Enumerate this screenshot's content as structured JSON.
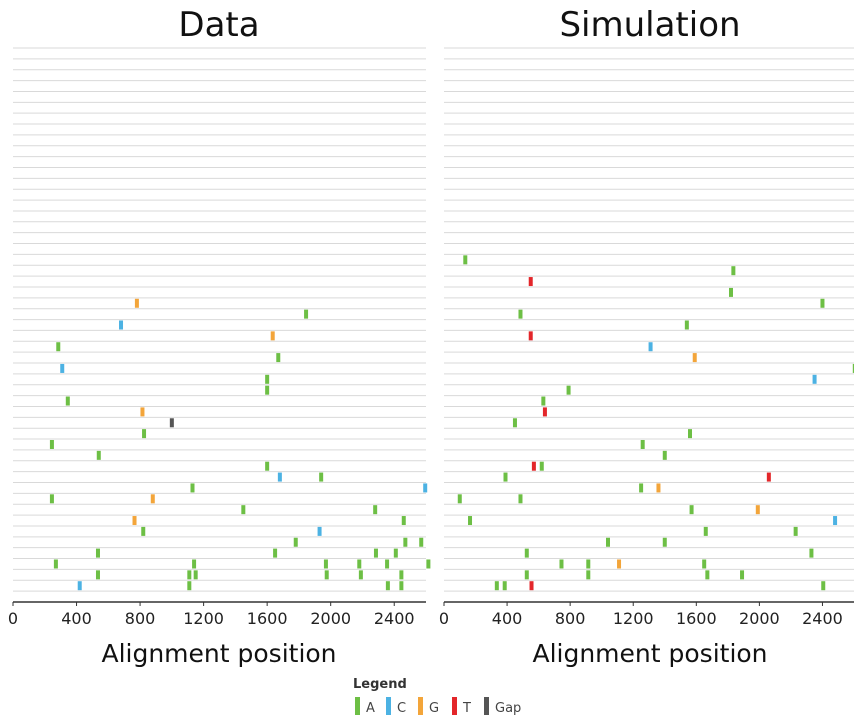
{
  "chart_data": [
    {
      "type": "scatter",
      "title": "Data",
      "xlabel": "Alignment position",
      "ylabel": "",
      "xlim": [
        0,
        2600
      ],
      "xticks": [
        "0",
        "400",
        "800",
        "1200",
        "1600",
        "2000",
        "2400"
      ],
      "row_count": 51,
      "grid": "horizontal",
      "points": [
        {
          "x": 780,
          "row": 27,
          "base": "G"
        },
        {
          "x": 1845,
          "row": 26,
          "base": "A"
        },
        {
          "x": 680,
          "row": 25,
          "base": "C"
        },
        {
          "x": 1635,
          "row": 24,
          "base": "G"
        },
        {
          "x": 285,
          "row": 23,
          "base": "A"
        },
        {
          "x": 1670,
          "row": 22,
          "base": "A"
        },
        {
          "x": 310,
          "row": 21,
          "base": "C"
        },
        {
          "x": 1600,
          "row": 20,
          "base": "A"
        },
        {
          "x": 1600,
          "row": 19,
          "base": "A"
        },
        {
          "x": 345,
          "row": 18,
          "base": "A"
        },
        {
          "x": 815,
          "row": 17,
          "base": "G"
        },
        {
          "x": 1000,
          "row": 16,
          "base": "Gap"
        },
        {
          "x": 825,
          "row": 15,
          "base": "A"
        },
        {
          "x": 245,
          "row": 14,
          "base": "A"
        },
        {
          "x": 540,
          "row": 13,
          "base": "A"
        },
        {
          "x": 1600,
          "row": 12,
          "base": "A"
        },
        {
          "x": 1680,
          "row": 11,
          "base": "C"
        },
        {
          "x": 1940,
          "row": 11,
          "base": "A"
        },
        {
          "x": 1130,
          "row": 10,
          "base": "A"
        },
        {
          "x": 2595,
          "row": 10,
          "base": "C"
        },
        {
          "x": 245,
          "row": 9,
          "base": "A"
        },
        {
          "x": 880,
          "row": 9,
          "base": "G"
        },
        {
          "x": 1450,
          "row": 8,
          "base": "A"
        },
        {
          "x": 2280,
          "row": 8,
          "base": "A"
        },
        {
          "x": 765,
          "row": 7,
          "base": "G"
        },
        {
          "x": 2460,
          "row": 7,
          "base": "A"
        },
        {
          "x": 820,
          "row": 6,
          "base": "A"
        },
        {
          "x": 1930,
          "row": 6,
          "base": "C"
        },
        {
          "x": 1780,
          "row": 5,
          "base": "A"
        },
        {
          "x": 2470,
          "row": 5,
          "base": "A"
        },
        {
          "x": 2570,
          "row": 5,
          "base": "A"
        },
        {
          "x": 535,
          "row": 4,
          "base": "A"
        },
        {
          "x": 1650,
          "row": 4,
          "base": "A"
        },
        {
          "x": 2285,
          "row": 4,
          "base": "A"
        },
        {
          "x": 2410,
          "row": 4,
          "base": "A"
        },
        {
          "x": 270,
          "row": 3,
          "base": "A"
        },
        {
          "x": 1140,
          "row": 3,
          "base": "A"
        },
        {
          "x": 1970,
          "row": 3,
          "base": "A"
        },
        {
          "x": 2180,
          "row": 3,
          "base": "A"
        },
        {
          "x": 2355,
          "row": 3,
          "base": "A"
        },
        {
          "x": 2615,
          "row": 3,
          "base": "A"
        },
        {
          "x": 535,
          "row": 2,
          "base": "A"
        },
        {
          "x": 1110,
          "row": 2,
          "base": "A"
        },
        {
          "x": 1150,
          "row": 2,
          "base": "A"
        },
        {
          "x": 1975,
          "row": 2,
          "base": "A"
        },
        {
          "x": 2190,
          "row": 2,
          "base": "A"
        },
        {
          "x": 2445,
          "row": 2,
          "base": "A"
        },
        {
          "x": 420,
          "row": 1,
          "base": "C"
        },
        {
          "x": 1110,
          "row": 1,
          "base": "A"
        },
        {
          "x": 2360,
          "row": 1,
          "base": "A"
        },
        {
          "x": 2445,
          "row": 1,
          "base": "A"
        }
      ]
    },
    {
      "type": "scatter",
      "title": "Simulation",
      "xlabel": "Alignment position",
      "ylabel": "",
      "xlim": [
        0,
        2600
      ],
      "xticks": [
        "0",
        "400",
        "800",
        "1200",
        "1600",
        "2000",
        "2400"
      ],
      "row_count": 51,
      "grid": "horizontal",
      "points": [
        {
          "x": 135,
          "row": 31,
          "base": "A"
        },
        {
          "x": 1835,
          "row": 30,
          "base": "A"
        },
        {
          "x": 550,
          "row": 29,
          "base": "T"
        },
        {
          "x": 1820,
          "row": 28,
          "base": "A"
        },
        {
          "x": 2400,
          "row": 27,
          "base": "A"
        },
        {
          "x": 485,
          "row": 26,
          "base": "A"
        },
        {
          "x": 1540,
          "row": 25,
          "base": "A"
        },
        {
          "x": 550,
          "row": 24,
          "base": "T"
        },
        {
          "x": 1310,
          "row": 23,
          "base": "C"
        },
        {
          "x": 1590,
          "row": 22,
          "base": "G"
        },
        {
          "x": 2605,
          "row": 21,
          "base": "A"
        },
        {
          "x": 2350,
          "row": 20,
          "base": "C"
        },
        {
          "x": 790,
          "row": 19,
          "base": "A"
        },
        {
          "x": 630,
          "row": 18,
          "base": "A"
        },
        {
          "x": 640,
          "row": 17,
          "base": "T"
        },
        {
          "x": 450,
          "row": 16,
          "base": "A"
        },
        {
          "x": 1560,
          "row": 15,
          "base": "A"
        },
        {
          "x": 1260,
          "row": 14,
          "base": "A"
        },
        {
          "x": 1400,
          "row": 13,
          "base": "A"
        },
        {
          "x": 570,
          "row": 12,
          "base": "T"
        },
        {
          "x": 620,
          "row": 12,
          "base": "A"
        },
        {
          "x": 390,
          "row": 11,
          "base": "A"
        },
        {
          "x": 2060,
          "row": 11,
          "base": "T"
        },
        {
          "x": 1250,
          "row": 10,
          "base": "A"
        },
        {
          "x": 1360,
          "row": 10,
          "base": "G"
        },
        {
          "x": 100,
          "row": 9,
          "base": "A"
        },
        {
          "x": 485,
          "row": 9,
          "base": "A"
        },
        {
          "x": 1570,
          "row": 8,
          "base": "A"
        },
        {
          "x": 1990,
          "row": 8,
          "base": "G"
        },
        {
          "x": 165,
          "row": 7,
          "base": "A"
        },
        {
          "x": 2480,
          "row": 7,
          "base": "C"
        },
        {
          "x": 1660,
          "row": 6,
          "base": "A"
        },
        {
          "x": 2230,
          "row": 6,
          "base": "A"
        },
        {
          "x": 1040,
          "row": 5,
          "base": "A"
        },
        {
          "x": 1400,
          "row": 5,
          "base": "A"
        },
        {
          "x": 525,
          "row": 4,
          "base": "A"
        },
        {
          "x": 2330,
          "row": 4,
          "base": "A"
        },
        {
          "x": 745,
          "row": 3,
          "base": "A"
        },
        {
          "x": 915,
          "row": 3,
          "base": "A"
        },
        {
          "x": 1110,
          "row": 3,
          "base": "G"
        },
        {
          "x": 1650,
          "row": 3,
          "base": "A"
        },
        {
          "x": 525,
          "row": 2,
          "base": "A"
        },
        {
          "x": 915,
          "row": 2,
          "base": "A"
        },
        {
          "x": 1670,
          "row": 2,
          "base": "A"
        },
        {
          "x": 1890,
          "row": 2,
          "base": "A"
        },
        {
          "x": 335,
          "row": 1,
          "base": "A"
        },
        {
          "x": 385,
          "row": 1,
          "base": "A"
        },
        {
          "x": 555,
          "row": 1,
          "base": "T"
        },
        {
          "x": 2405,
          "row": 1,
          "base": "A"
        }
      ]
    }
  ],
  "legend": {
    "title": "Legend",
    "items": [
      {
        "label": "A",
        "color": "#6dbf45"
      },
      {
        "label": "C",
        "color": "#4cb2e3"
      },
      {
        "label": "G",
        "color": "#f3a53a"
      },
      {
        "label": "T",
        "color": "#e3262a"
      },
      {
        "label": "Gap",
        "color": "#555555"
      }
    ]
  },
  "colors": {
    "A": "#6dbf45",
    "C": "#4cb2e3",
    "G": "#f3a53a",
    "T": "#e3262a",
    "Gap": "#555555",
    "grid": "#d9d9d9",
    "axis": "#333333"
  }
}
